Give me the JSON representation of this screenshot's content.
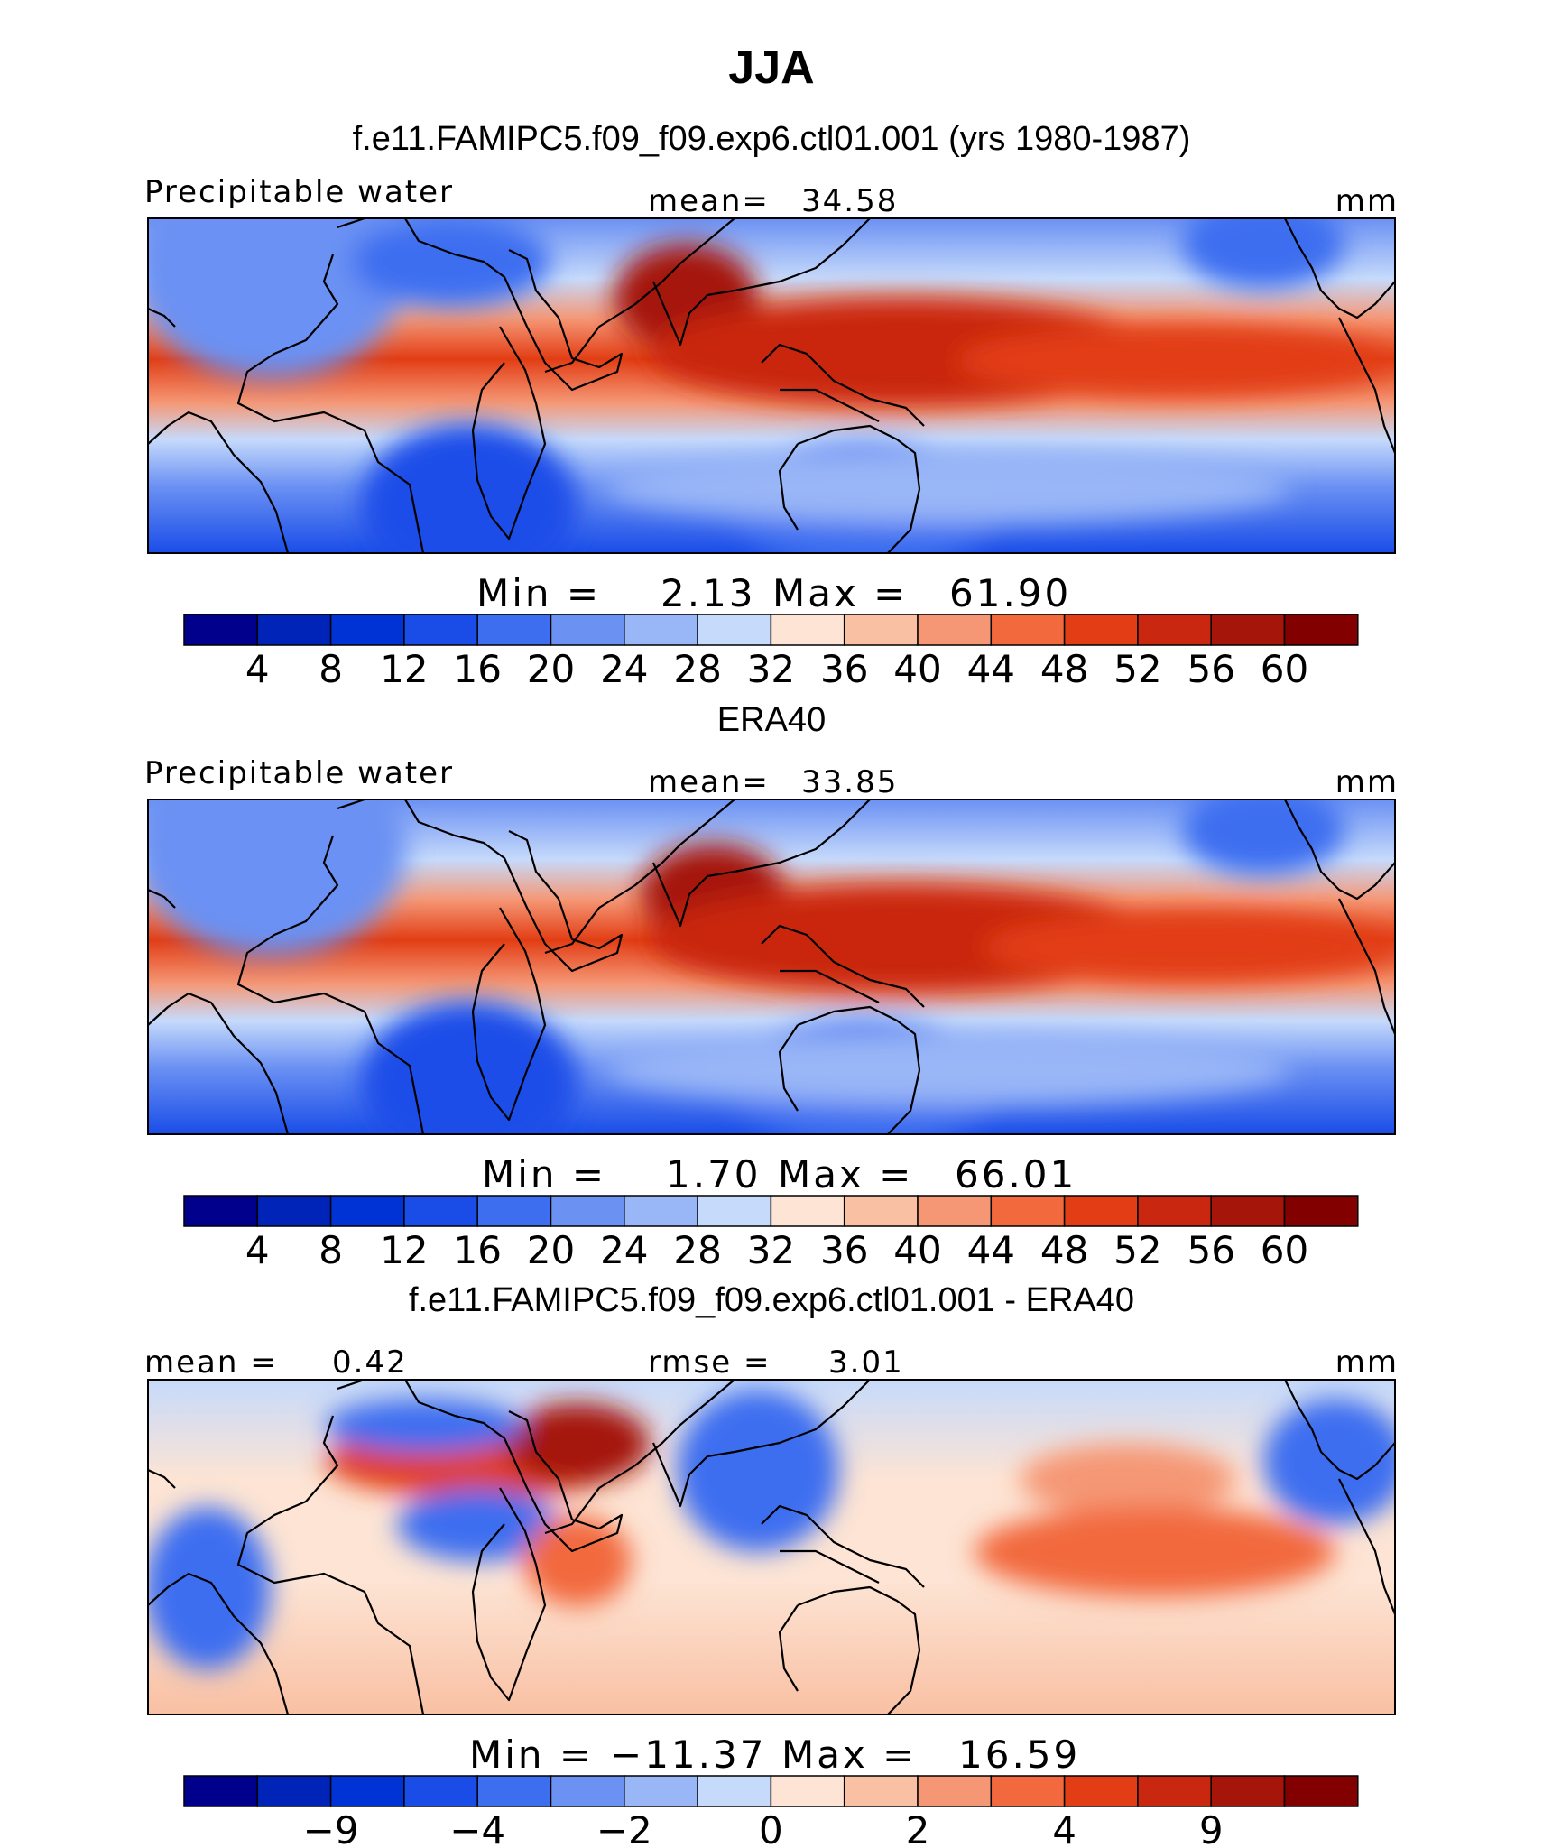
{
  "title": "JJA",
  "colors": {
    "full_field_scale": [
      "#00008c",
      "#0024b8",
      "#0033d6",
      "#1a4de8",
      "#3d6ef0",
      "#6b91f3",
      "#99b6f7",
      "#c6dafb",
      "#fde4d4",
      "#f9c0a3",
      "#f59775",
      "#f2693d",
      "#e23d14",
      "#c92710",
      "#a51509",
      "#830000"
    ],
    "difference_scale": [
      "#00008c",
      "#0024b8",
      "#0033d6",
      "#1a4de8",
      "#3d6ef0",
      "#6b91f3",
      "#99b6f7",
      "#c6dafb",
      "#fde4d4",
      "#f9c0a3",
      "#f59775",
      "#f2693d",
      "#e23d14",
      "#c92710",
      "#a51509",
      "#830000"
    ]
  },
  "chart_data": [
    {
      "type": "heatmap",
      "title": "f.e11.FAMIPC5.f09_f09.exp6.ctl01.001 (yrs 1980-1987)",
      "variable_label": "Precipitable water",
      "mean_label": "mean=",
      "mean": "34.58",
      "units": "mm",
      "min_label": "Min  =",
      "min": "2.13",
      "max_label": "Max  =",
      "max": "61.90",
      "colorbar_levels": [
        4,
        8,
        12,
        16,
        20,
        24,
        28,
        32,
        36,
        40,
        44,
        48,
        52,
        56,
        60
      ],
      "colorbar_tick_labels": [
        "4",
        "8",
        "12",
        "16",
        "20",
        "24",
        "28",
        "32",
        "36",
        "40",
        "44",
        "48",
        "52",
        "56",
        "60"
      ]
    },
    {
      "type": "heatmap",
      "title": "ERA40",
      "variable_label": "Precipitable water",
      "mean_label": "mean=",
      "mean": "33.85",
      "units": "mm",
      "min_label": "Min  =",
      "min": "1.70",
      "max_label": "Max  =",
      "max": "66.01",
      "colorbar_levels": [
        4,
        8,
        12,
        16,
        20,
        24,
        28,
        32,
        36,
        40,
        44,
        48,
        52,
        56,
        60
      ],
      "colorbar_tick_labels": [
        "4",
        "8",
        "12",
        "16",
        "20",
        "24",
        "28",
        "32",
        "36",
        "40",
        "44",
        "48",
        "52",
        "56",
        "60"
      ]
    },
    {
      "type": "heatmap",
      "title": "f.e11.FAMIPC5.f09_f09.exp6.ctl01.001 - ERA40",
      "mean_label": "mean =",
      "mean": "0.42",
      "rmse_label": "rmse =",
      "rmse": "3.01",
      "units": "mm",
      "min_label": "Min  =",
      "min": "−11.37",
      "max_label": "Max  =",
      "max": "16.59",
      "colorbar_tick_labels": [
        "−9",
        "−4",
        "−2",
        "0",
        "2",
        "4",
        "9"
      ]
    }
  ]
}
